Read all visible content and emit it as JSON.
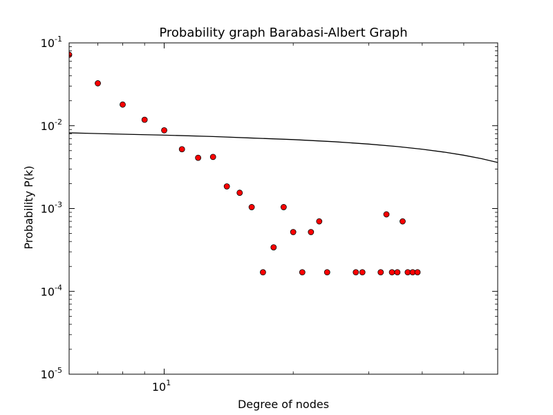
{
  "chart_data": {
    "type": "scatter",
    "title": "Probability graph Barabasi-Albert Graph",
    "xlabel": "Degree of nodes",
    "ylabel": "Probability P(k)",
    "xscale": "log",
    "yscale": "log",
    "xlim": [
      6,
      60
    ],
    "ylim": [
      1e-05,
      0.1
    ],
    "x_ticks": [
      {
        "base": "10",
        "exp": "1",
        "value": 10
      }
    ],
    "y_ticks": [
      {
        "base": "10",
        "exp": "-1",
        "value": 0.1
      },
      {
        "base": "10",
        "exp": "-2",
        "value": 0.01
      },
      {
        "base": "10",
        "exp": "-3",
        "value": 0.001
      },
      {
        "base": "10",
        "exp": "-4",
        "value": 0.0001
      },
      {
        "base": "10",
        "exp": "-5",
        "value": 1e-05
      }
    ],
    "grid": false,
    "points": {
      "color": "#ff0000",
      "edge_color": "#000000",
      "x": [
        6,
        7,
        8,
        9,
        10,
        11,
        12,
        13,
        14,
        15,
        16,
        17,
        18,
        19,
        20,
        21,
        22,
        23,
        24,
        28,
        29,
        32,
        33,
        34,
        35,
        36,
        37,
        38,
        39
      ],
      "y": [
        0.072,
        0.0325,
        0.018,
        0.0118,
        0.0088,
        0.0052,
        0.0041,
        0.0042,
        0.00185,
        0.00155,
        0.00104,
        0.00017,
        0.00034,
        0.00104,
        0.00052,
        0.00017,
        0.00052,
        0.0007,
        0.00017,
        0.00017,
        0.00017,
        0.00017,
        0.00085,
        0.00017,
        0.00017,
        0.0007,
        0.00017,
        0.00017,
        0.00017
      ]
    },
    "fit_line": {
      "color": "#000000",
      "x": [
        6,
        8,
        10,
        13,
        16,
        20,
        25,
        30,
        35,
        40,
        45,
        50,
        55,
        60
      ],
      "y": [
        0.0082,
        0.0079,
        0.0077,
        0.0074,
        0.0071,
        0.0068,
        0.0064,
        0.006,
        0.0056,
        0.0052,
        0.0048,
        0.0044,
        0.004,
        0.0036
      ]
    }
  }
}
